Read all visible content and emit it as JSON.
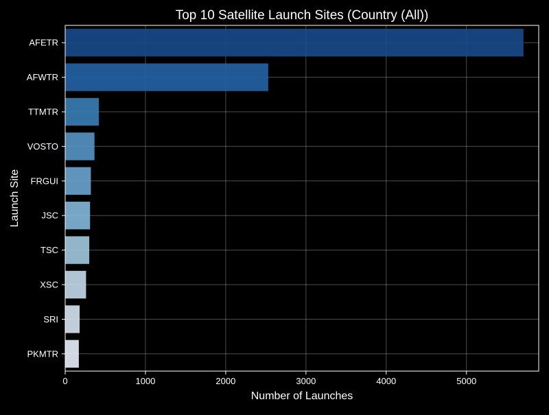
{
  "chart_data": {
    "type": "bar",
    "orientation": "horizontal",
    "title": "Top 10 Satellite Launch Sites (Country (All))",
    "xlabel": "Number of Launches",
    "ylabel": "Launch Site",
    "categories": [
      "AFETR",
      "AFWTR",
      "TTMTR",
      "VOSTO",
      "FRGUI",
      "JSC",
      "TSC",
      "XSC",
      "SRI",
      "PKMTR"
    ],
    "values": [
      5710,
      2530,
      420,
      365,
      320,
      310,
      300,
      260,
      180,
      170
    ],
    "xlim": [
      0,
      5900
    ],
    "xticks": [
      0,
      1000,
      2000,
      3000,
      4000,
      5000
    ],
    "grid": true,
    "legend": "none",
    "background_color": "#000000",
    "text_color": "#ffffff",
    "bar_colors": [
      "#1a4a8a",
      "#2563a6",
      "#3a7eb8",
      "#5895c4",
      "#6aa4cf",
      "#83b8d9",
      "#a3c9e0",
      "#c4d9ea",
      "#d6e4f1",
      "#e9f0f9"
    ]
  }
}
